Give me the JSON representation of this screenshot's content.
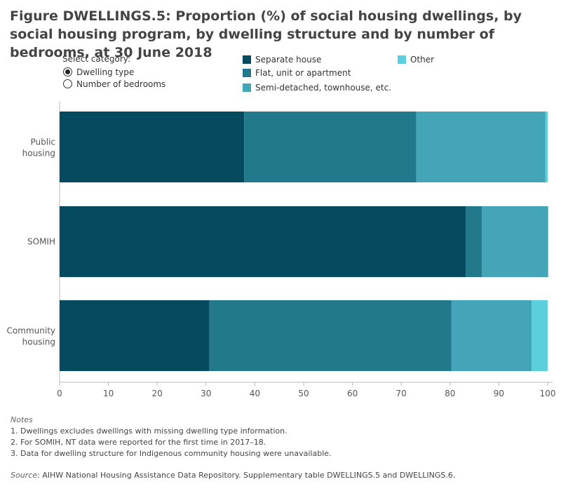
{
  "title": "Figure DWELLINGS.5: Proportion (%) of social housing dwellings, by social housing program, by dwelling structure and by number of bedrooms, at 30 June 2018",
  "controls": {
    "label": "Select category:",
    "options": [
      {
        "label": "Dwelling type",
        "checked": true
      },
      {
        "label": "Number of bedrooms",
        "checked": false
      }
    ]
  },
  "chart_data": {
    "type": "bar",
    "orientation": "horizontal",
    "stacked": true,
    "categories": [
      "Public housing",
      "SOMIH",
      "Community housing"
    ],
    "series": [
      {
        "name": "Separate house",
        "color": "#064a60",
        "values": [
          37.8,
          83.2,
          30.7
        ]
      },
      {
        "name": "Flat, unit or apartment",
        "color": "#22798c",
        "values": [
          35.3,
          3.3,
          49.6
        ]
      },
      {
        "name": "Semi-detached, townhouse, etc.",
        "color": "#44a4b8",
        "values": [
          26.4,
          13.6,
          16.4
        ]
      },
      {
        "name": "Other",
        "color": "#5bcfdc",
        "values": [
          0.5,
          0.0,
          3.3
        ]
      }
    ],
    "xlim": [
      0,
      100
    ],
    "xticks": [
      "0",
      "10",
      "20",
      "30",
      "40",
      "50",
      "60",
      "70",
      "80",
      "90",
      "100"
    ],
    "legend_position": "top"
  },
  "notes": {
    "heading": "Notes",
    "items": [
      "1. Dwellings excludes dwellings with missing dwelling type information.",
      "2. For SOMIH, NT data were reported for the first time in 2017–18.",
      "3. Data for dwelling structure for Indigenous community housing were unavailable."
    ]
  },
  "source": {
    "label": "Source",
    "text": ": AIHW National Housing Assistance Data Repository. Supplementary table DWELLINGS.5 and DWELLINGS.6."
  }
}
